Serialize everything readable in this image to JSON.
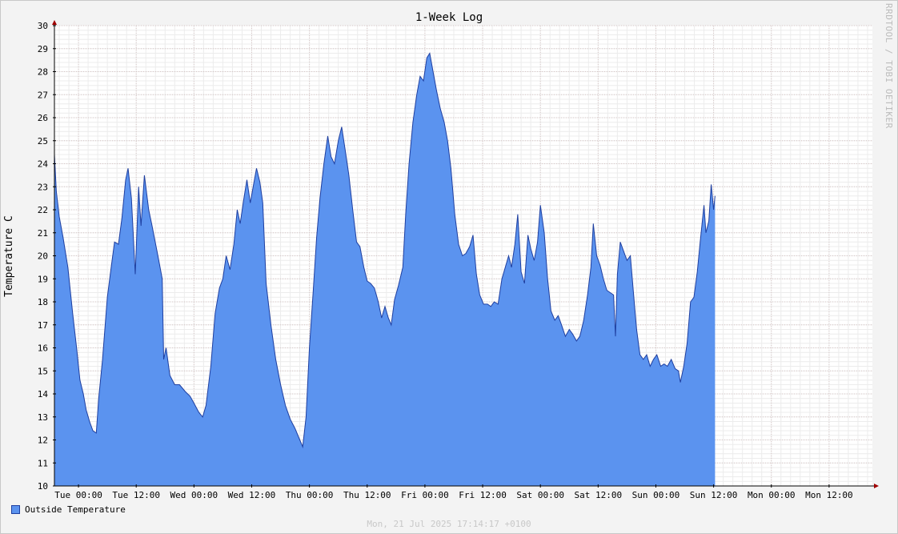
{
  "chart_data": {
    "type": "area",
    "title": "1-Week Log",
    "ylabel": "Temperature C",
    "xlabel": "",
    "ylim": [
      10,
      30
    ],
    "yticks": [
      10,
      11,
      12,
      13,
      14,
      15,
      16,
      17,
      18,
      19,
      20,
      21,
      22,
      23,
      24,
      25,
      26,
      27,
      28,
      29,
      30
    ],
    "xlim_hours": [
      -5,
      165
    ],
    "xtick_labels": [
      {
        "hour": 0,
        "label": "Tue 00:00"
      },
      {
        "hour": 12,
        "label": "Tue 12:00"
      },
      {
        "hour": 24,
        "label": "Wed 00:00"
      },
      {
        "hour": 36,
        "label": "Wed 12:00"
      },
      {
        "hour": 48,
        "label": "Thu 00:00"
      },
      {
        "hour": 60,
        "label": "Thu 12:00"
      },
      {
        "hour": 72,
        "label": "Fri 00:00"
      },
      {
        "hour": 84,
        "label": "Fri 12:00"
      },
      {
        "hour": 96,
        "label": "Sat 00:00"
      },
      {
        "hour": 108,
        "label": "Sat 12:00"
      },
      {
        "hour": 120,
        "label": "Sun 00:00"
      },
      {
        "hour": 132,
        "label": "Sun 12:00"
      },
      {
        "hour": 144,
        "label": "Mon 00:00"
      },
      {
        "hour": 156,
        "label": "Mon 12:00"
      }
    ],
    "grid": true,
    "legend_position": "bottom-left",
    "series": [
      {
        "name": "Outside Temperature",
        "color": "#5b93ef",
        "line_color": "#1e3fa0",
        "points": [
          [
            -5,
            24.4
          ],
          [
            -4.6,
            22.8
          ],
          [
            -4.0,
            21.7
          ],
          [
            -3.2,
            20.8
          ],
          [
            -2.2,
            19.5
          ],
          [
            -1.2,
            17.5
          ],
          [
            -0.4,
            16.0
          ],
          [
            0.3,
            14.6
          ],
          [
            1.0,
            14.0
          ],
          [
            1.6,
            13.3
          ],
          [
            2.3,
            12.8
          ],
          [
            3.0,
            12.4
          ],
          [
            3.7,
            12.3
          ],
          [
            4.2,
            13.8
          ],
          [
            5.0,
            15.5
          ],
          [
            6.0,
            18.2
          ],
          [
            6.8,
            19.5
          ],
          [
            7.5,
            20.6
          ],
          [
            8.3,
            20.5
          ],
          [
            9.0,
            21.6
          ],
          [
            9.8,
            23.3
          ],
          [
            10.3,
            23.8
          ],
          [
            11.0,
            22.5
          ],
          [
            11.8,
            19.2
          ],
          [
            12.5,
            23.0
          ],
          [
            13.0,
            21.3
          ],
          [
            13.7,
            23.5
          ],
          [
            14.6,
            22.0
          ],
          [
            15.3,
            21.3
          ],
          [
            16.5,
            20.0
          ],
          [
            17.4,
            19.0
          ],
          [
            17.7,
            15.5
          ],
          [
            18.2,
            16.0
          ],
          [
            19.0,
            14.8
          ],
          [
            20.0,
            14.4
          ],
          [
            21.0,
            14.4
          ],
          [
            22.2,
            14.1
          ],
          [
            23.2,
            13.9
          ],
          [
            24.0,
            13.6
          ],
          [
            25.0,
            13.2
          ],
          [
            25.8,
            13.0
          ],
          [
            26.5,
            13.5
          ],
          [
            27.5,
            15.2
          ],
          [
            28.4,
            17.5
          ],
          [
            29.3,
            18.6
          ],
          [
            30.0,
            19.0
          ],
          [
            30.7,
            20.0
          ],
          [
            31.5,
            19.4
          ],
          [
            32.3,
            20.5
          ],
          [
            33.0,
            22.0
          ],
          [
            33.6,
            21.4
          ],
          [
            34.3,
            22.4
          ],
          [
            35.0,
            23.3
          ],
          [
            35.7,
            22.3
          ],
          [
            36.3,
            23.0
          ],
          [
            37.0,
            23.8
          ],
          [
            37.7,
            23.2
          ],
          [
            38.3,
            22.3
          ],
          [
            39.0,
            18.8
          ],
          [
            40.0,
            17.0
          ],
          [
            41.0,
            15.5
          ],
          [
            42.0,
            14.4
          ],
          [
            43.0,
            13.5
          ],
          [
            44.0,
            12.9
          ],
          [
            45.0,
            12.5
          ],
          [
            46.0,
            12.0
          ],
          [
            46.6,
            11.7
          ],
          [
            47.3,
            13.0
          ],
          [
            48.0,
            16.0
          ],
          [
            48.8,
            18.5
          ],
          [
            49.5,
            20.8
          ],
          [
            50.2,
            22.5
          ],
          [
            51.0,
            24.0
          ],
          [
            51.8,
            25.2
          ],
          [
            52.5,
            24.3
          ],
          [
            53.2,
            24.0
          ],
          [
            54.0,
            25.0
          ],
          [
            54.7,
            25.6
          ],
          [
            55.5,
            24.5
          ],
          [
            56.2,
            23.5
          ],
          [
            57.0,
            22.0
          ],
          [
            57.8,
            20.6
          ],
          [
            58.5,
            20.4
          ],
          [
            59.3,
            19.5
          ],
          [
            60.0,
            18.9
          ],
          [
            60.7,
            18.8
          ],
          [
            61.5,
            18.6
          ],
          [
            62.3,
            18.0
          ],
          [
            63.0,
            17.3
          ],
          [
            63.7,
            17.8
          ],
          [
            64.4,
            17.3
          ],
          [
            65.0,
            17.0
          ],
          [
            65.7,
            18.1
          ],
          [
            66.5,
            18.7
          ],
          [
            67.4,
            19.5
          ],
          [
            68.0,
            21.8
          ],
          [
            68.7,
            24.0
          ],
          [
            69.5,
            25.8
          ],
          [
            70.3,
            27.0
          ],
          [
            71.0,
            27.8
          ],
          [
            71.7,
            27.6
          ],
          [
            72.4,
            28.6
          ],
          [
            73.0,
            28.8
          ],
          [
            73.7,
            28.0
          ],
          [
            74.4,
            27.2
          ],
          [
            75.2,
            26.4
          ],
          [
            76.0,
            25.8
          ],
          [
            76.7,
            25.0
          ],
          [
            77.4,
            23.8
          ],
          [
            78.2,
            21.8
          ],
          [
            79.0,
            20.5
          ],
          [
            79.8,
            20.0
          ],
          [
            80.5,
            20.1
          ],
          [
            81.3,
            20.4
          ],
          [
            82.0,
            20.9
          ],
          [
            82.7,
            19.2
          ],
          [
            83.4,
            18.3
          ],
          [
            84.2,
            17.9
          ],
          [
            85.0,
            17.9
          ],
          [
            85.7,
            17.8
          ],
          [
            86.4,
            18.0
          ],
          [
            87.2,
            17.9
          ],
          [
            88.0,
            19.0
          ],
          [
            88.7,
            19.5
          ],
          [
            89.4,
            20.0
          ],
          [
            90.0,
            19.5
          ],
          [
            90.7,
            20.5
          ],
          [
            91.3,
            21.8
          ],
          [
            92.0,
            19.3
          ],
          [
            92.7,
            18.8
          ],
          [
            93.4,
            20.9
          ],
          [
            94.0,
            20.3
          ],
          [
            94.7,
            19.8
          ],
          [
            95.4,
            20.6
          ],
          [
            96.0,
            22.2
          ],
          [
            96.8,
            21.0
          ],
          [
            97.5,
            19.0
          ],
          [
            98.2,
            17.6
          ],
          [
            99.0,
            17.2
          ],
          [
            99.7,
            17.4
          ],
          [
            100.4,
            17.0
          ],
          [
            101.2,
            16.5
          ],
          [
            102.0,
            16.8
          ],
          [
            102.7,
            16.6
          ],
          [
            103.5,
            16.3
          ],
          [
            104.2,
            16.5
          ],
          [
            105.0,
            17.2
          ],
          [
            105.8,
            18.3
          ],
          [
            106.5,
            19.5
          ],
          [
            107.0,
            21.4
          ],
          [
            107.7,
            20.0
          ],
          [
            108.4,
            19.6
          ],
          [
            109.1,
            19.0
          ],
          [
            109.8,
            18.5
          ],
          [
            110.5,
            18.4
          ],
          [
            111.2,
            18.3
          ],
          [
            111.6,
            16.5
          ],
          [
            112.0,
            19.2
          ],
          [
            112.6,
            20.6
          ],
          [
            113.3,
            20.2
          ],
          [
            114.0,
            19.8
          ],
          [
            114.7,
            20.0
          ],
          [
            115.3,
            18.5
          ],
          [
            116.0,
            16.8
          ],
          [
            116.7,
            15.7
          ],
          [
            117.4,
            15.5
          ],
          [
            118.1,
            15.7
          ],
          [
            118.8,
            15.2
          ],
          [
            119.5,
            15.5
          ],
          [
            120.2,
            15.7
          ],
          [
            121.0,
            15.2
          ],
          [
            121.7,
            15.3
          ],
          [
            122.4,
            15.2
          ],
          [
            123.2,
            15.5
          ],
          [
            124.0,
            15.1
          ],
          [
            124.7,
            15.0
          ],
          [
            125.1,
            14.5
          ],
          [
            125.8,
            15.2
          ],
          [
            126.5,
            16.2
          ],
          [
            127.2,
            18.0
          ],
          [
            127.9,
            18.2
          ],
          [
            128.6,
            19.3
          ],
          [
            129.3,
            20.8
          ],
          [
            130.0,
            22.2
          ],
          [
            130.4,
            21.0
          ],
          [
            131.0,
            21.5
          ],
          [
            131.5,
            23.1
          ],
          [
            132.0,
            22.0
          ],
          [
            132.3,
            22.6
          ]
        ]
      }
    ]
  },
  "legend": {
    "items": [
      {
        "label": "Outside Temperature",
        "color": "#5b93ef"
      }
    ]
  },
  "footer": {
    "timestamp": "Mon, 21 Jul 2025 17:14:17 +0100",
    "watermark": "RRDTOOL / TOBI OETIKER"
  }
}
